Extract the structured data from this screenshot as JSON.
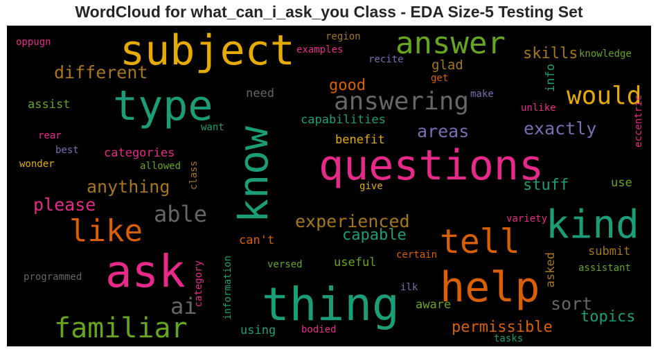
{
  "title": "WordCloud for what_can_i_ask_you Class - EDA Size-5 Testing Set",
  "palette": {
    "teal": "#1b9e77",
    "orange": "#d95f02",
    "purple": "#7570b3",
    "pink": "#e7298a",
    "green": "#66a61e",
    "gold": "#e6ab02",
    "brown": "#a6761d",
    "gray": "#666666",
    "background": "#000000"
  },
  "words": [
    {
      "text": "subject",
      "color": "#e6ab02"
    },
    {
      "text": "type",
      "color": "#1b9e77"
    },
    {
      "text": "questions",
      "color": "#e7298a"
    },
    {
      "text": "thing",
      "color": "#1b9e77"
    },
    {
      "text": "ask",
      "color": "#e7298a"
    },
    {
      "text": "help",
      "color": "#d95f02"
    },
    {
      "text": "kind",
      "color": "#1b9e77"
    },
    {
      "text": "know",
      "color": "#1b9e77"
    },
    {
      "text": "answer",
      "color": "#66a61e"
    },
    {
      "text": "tell",
      "color": "#d95f02"
    },
    {
      "text": "like",
      "color": "#d95f02"
    },
    {
      "text": "familiar",
      "color": "#66a61e"
    },
    {
      "text": "answering",
      "color": "#666666"
    },
    {
      "text": "would",
      "color": "#e6ab02"
    },
    {
      "text": "different",
      "color": "#a6761d"
    },
    {
      "text": "able",
      "color": "#666666"
    },
    {
      "text": "anything",
      "color": "#a6761d"
    },
    {
      "text": "experienced",
      "color": "#a6761d"
    },
    {
      "text": "please",
      "color": "#e7298a"
    },
    {
      "text": "ai",
      "color": "#666666"
    },
    {
      "text": "exactly",
      "color": "#7570b3"
    },
    {
      "text": "areas",
      "color": "#7570b3"
    },
    {
      "text": "sort",
      "color": "#666666"
    },
    {
      "text": "skills",
      "color": "#a6761d"
    },
    {
      "text": "capable",
      "color": "#1b9e77"
    },
    {
      "text": "permissible",
      "color": "#d95f02"
    },
    {
      "text": "topics",
      "color": "#1b9e77"
    },
    {
      "text": "stuff",
      "color": "#1b9e77"
    },
    {
      "text": "good",
      "color": "#d95f02"
    },
    {
      "text": "glad",
      "color": "#a6761d"
    },
    {
      "text": "capabilities",
      "color": "#1b9e77"
    },
    {
      "text": "categories",
      "color": "#e7298a"
    },
    {
      "text": "need",
      "color": "#666666"
    },
    {
      "text": "assist",
      "color": "#66a61e"
    },
    {
      "text": "benefit",
      "color": "#e6ab02"
    },
    {
      "text": "useful",
      "color": "#66a61e"
    },
    {
      "text": "using",
      "color": "#1b9e77"
    },
    {
      "text": "aware",
      "color": "#66a61e"
    },
    {
      "text": "submit",
      "color": "#a6761d"
    },
    {
      "text": "info",
      "color": "#1b9e77"
    },
    {
      "text": "asked",
      "color": "#a6761d"
    },
    {
      "text": "use",
      "color": "#66a61e"
    },
    {
      "text": "can't",
      "color": "#d95f02"
    },
    {
      "text": "region",
      "color": "#a6761d"
    },
    {
      "text": "examples",
      "color": "#e7298a"
    },
    {
      "text": "recite",
      "color": "#7570b3"
    },
    {
      "text": "get",
      "color": "#d95f02"
    },
    {
      "text": "make",
      "color": "#7570b3"
    },
    {
      "text": "knowledge",
      "color": "#66a61e"
    },
    {
      "text": "oppugn",
      "color": "#e7298a"
    },
    {
      "text": "unlike",
      "color": "#e7298a"
    },
    {
      "text": "eccentric",
      "color": "#e7298a"
    },
    {
      "text": "want",
      "color": "#1b9e77"
    },
    {
      "text": "rear",
      "color": "#e7298a"
    },
    {
      "text": "best",
      "color": "#7570b3"
    },
    {
      "text": "wonder",
      "color": "#e6ab02"
    },
    {
      "text": "allowed",
      "color": "#66a61e"
    },
    {
      "text": "class",
      "color": "#a6761d"
    },
    {
      "text": "give",
      "color": "#e6ab02"
    },
    {
      "text": "variety",
      "color": "#e7298a"
    },
    {
      "text": "certain",
      "color": "#d95f02"
    },
    {
      "text": "versed",
      "color": "#66a61e"
    },
    {
      "text": "assistant",
      "color": "#66a61e"
    },
    {
      "text": "programmed",
      "color": "#666666"
    },
    {
      "text": "category",
      "color": "#e7298a"
    },
    {
      "text": "information",
      "color": "#1b9e77"
    },
    {
      "text": "ilk",
      "color": "#7570b3"
    },
    {
      "text": "bodied",
      "color": "#e7298a"
    },
    {
      "text": "tasks",
      "color": "#1b9e77"
    }
  ]
}
